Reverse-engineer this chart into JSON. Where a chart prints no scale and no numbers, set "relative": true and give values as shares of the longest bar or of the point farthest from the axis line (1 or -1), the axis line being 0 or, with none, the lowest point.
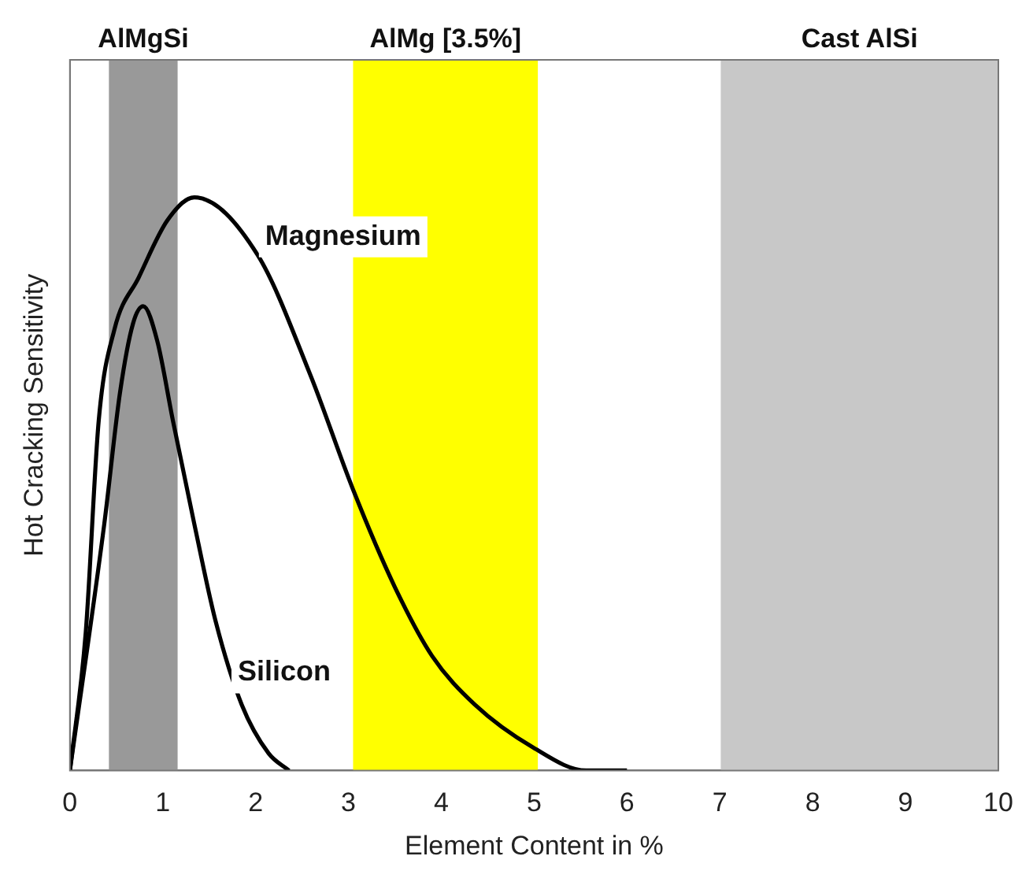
{
  "chart_data": {
    "type": "line",
    "relative": true,
    "xlabel": "Element Content in %",
    "ylabel": "Hot Cracking Sensitivity",
    "xlim": [
      0,
      10
    ],
    "xticks": [
      0,
      1,
      2,
      3,
      4,
      5,
      6,
      7,
      8,
      9,
      10
    ],
    "grid": false,
    "legend": false,
    "marker": "none",
    "line_style": "solid",
    "series": [
      {
        "name": "Magnesium",
        "color": "#000000",
        "x": [
          0,
          0.17,
          0.31,
          0.48,
          0.74,
          1.05,
          1.34,
          2.02,
          2.59,
          3.05,
          3.5,
          3.9,
          4.36,
          4.99,
          5.56,
          6
        ],
        "values": [
          0,
          0.24,
          0.61,
          0.77,
          0.86,
          0.96,
          1,
          0.9,
          0.69,
          0.49,
          0.32,
          0.2,
          0.115,
          0.04,
          0,
          0
        ]
      },
      {
        "name": "Silicon",
        "color": "#000000",
        "x": [
          0,
          0.37,
          0.54,
          0.68,
          0.79,
          0.94,
          1.11,
          1.34,
          1.57,
          1.85,
          2.14,
          2.36
        ],
        "values": [
          0,
          0.43,
          0.66,
          0.78,
          0.81,
          0.75,
          0.61,
          0.43,
          0.26,
          0.115,
          0.03,
          0
        ]
      }
    ],
    "bands": [
      {
        "axis": "x",
        "from": 0.42,
        "to": 1.16,
        "label": "AlMgSi",
        "color": "#999999"
      },
      {
        "axis": "x",
        "from": 3.05,
        "to": 5.04,
        "label": "AlMg [3.5%]",
        "color": "#ffff00"
      },
      {
        "axis": "x",
        "from": 7.01,
        "to": 10,
        "label": "Cast AlSi",
        "color": "#c8c8c8"
      }
    ]
  }
}
